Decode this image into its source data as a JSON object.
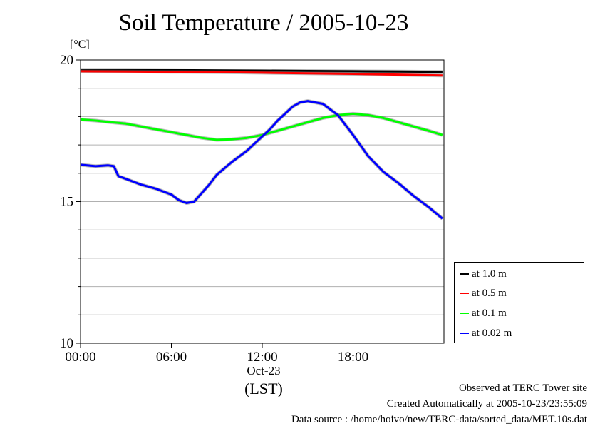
{
  "chart_data": {
    "type": "line",
    "title": "Soil Temperature / 2005-10-23",
    "ylabel_unit": "[°C]",
    "ylim": [
      10,
      20
    ],
    "yticks": [
      "10",
      "15",
      "20"
    ],
    "xlim_hours": [
      0,
      24
    ],
    "xticks": [
      "00:00",
      "06:00",
      "12:00",
      "18:00"
    ],
    "xdate": "Oct-23",
    "xlabel": "(LST)",
    "grid": true,
    "legend_position": "right-bottom",
    "series": [
      {
        "name": "at 1.0 m",
        "color": "#000000",
        "points": [
          [
            0,
            19.65
          ],
          [
            3,
            19.65
          ],
          [
            6,
            19.64
          ],
          [
            9,
            19.63
          ],
          [
            12,
            19.62
          ],
          [
            15,
            19.61
          ],
          [
            18,
            19.6
          ],
          [
            21,
            19.59
          ],
          [
            23.9,
            19.58
          ]
        ]
      },
      {
        "name": "at 0.5 m",
        "color": "#ff0000",
        "points": [
          [
            0,
            19.6
          ],
          [
            3,
            19.59
          ],
          [
            6,
            19.58
          ],
          [
            9,
            19.57
          ],
          [
            12,
            19.55
          ],
          [
            15,
            19.53
          ],
          [
            18,
            19.51
          ],
          [
            21,
            19.48
          ],
          [
            23.9,
            19.45
          ]
        ]
      },
      {
        "name": "at 0.1 m",
        "color": "#00ff00",
        "points": [
          [
            0,
            17.9
          ],
          [
            1,
            17.86
          ],
          [
            2,
            17.8
          ],
          [
            3,
            17.75
          ],
          [
            4,
            17.65
          ],
          [
            5,
            17.55
          ],
          [
            6,
            17.45
          ],
          [
            7,
            17.35
          ],
          [
            8,
            17.25
          ],
          [
            9,
            17.18
          ],
          [
            10,
            17.2
          ],
          [
            11,
            17.25
          ],
          [
            12,
            17.35
          ],
          [
            13,
            17.5
          ],
          [
            14,
            17.65
          ],
          [
            15,
            17.8
          ],
          [
            16,
            17.95
          ],
          [
            17,
            18.05
          ],
          [
            18,
            18.1
          ],
          [
            19,
            18.05
          ],
          [
            20,
            17.95
          ],
          [
            21,
            17.8
          ],
          [
            22,
            17.65
          ],
          [
            23,
            17.5
          ],
          [
            23.9,
            17.35
          ]
        ]
      },
      {
        "name": "at 0.02 m",
        "color": "#0000ff",
        "points": [
          [
            0,
            16.3
          ],
          [
            1,
            16.25
          ],
          [
            1.8,
            16.28
          ],
          [
            2.2,
            16.25
          ],
          [
            2.5,
            15.9
          ],
          [
            3,
            15.8
          ],
          [
            4,
            15.6
          ],
          [
            5,
            15.45
          ],
          [
            6,
            15.25
          ],
          [
            6.5,
            15.05
          ],
          [
            7,
            14.95
          ],
          [
            7.5,
            15.0
          ],
          [
            8,
            15.3
          ],
          [
            8.5,
            15.6
          ],
          [
            9,
            15.95
          ],
          [
            10,
            16.4
          ],
          [
            11,
            16.8
          ],
          [
            12,
            17.3
          ],
          [
            12.5,
            17.55
          ],
          [
            13,
            17.85
          ],
          [
            14,
            18.35
          ],
          [
            14.5,
            18.5
          ],
          [
            15,
            18.55
          ],
          [
            16,
            18.45
          ],
          [
            17,
            18.05
          ],
          [
            18,
            17.35
          ],
          [
            19,
            16.6
          ],
          [
            20,
            16.05
          ],
          [
            21,
            15.65
          ],
          [
            22,
            15.2
          ],
          [
            23,
            14.8
          ],
          [
            23.9,
            14.4
          ]
        ]
      }
    ]
  },
  "footer": {
    "line1": "Observed at TERC Tower site",
    "line2": "Created Automatically at 2005-10-23/23:55:09",
    "line3": "Data source : /home/hoivo/new/TERC-data/sorted_data/MET.10s.dat"
  }
}
